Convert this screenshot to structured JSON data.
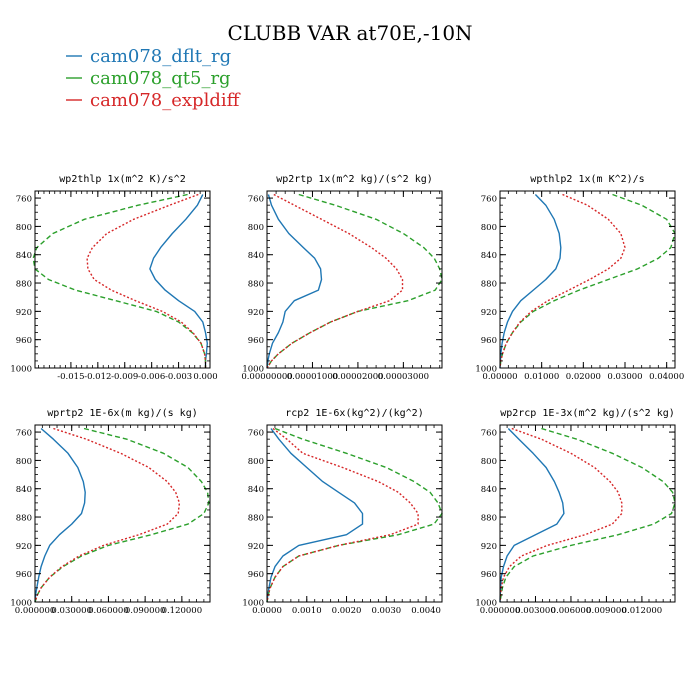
{
  "figure": {
    "title": "CLUBB VAR at70E,-10N",
    "legend": [
      {
        "label": "cam078_dflt_rg",
        "color": "#1f77b4"
      },
      {
        "label": "cam078_qt5_rg",
        "color": "#2ca02c"
      },
      {
        "label": "cam078_expldiff",
        "color": "#d62728"
      }
    ]
  },
  "chart_data": [
    {
      "type": "line",
      "title": "wp2thlp  1x(m^2 K)/s^2",
      "xlim": [
        -0.019,
        0.0005
      ],
      "ylim": [
        750,
        1000
      ],
      "y_inverted": true,
      "yticks": [
        760,
        800,
        840,
        880,
        920,
        960,
        1000
      ],
      "xticks": [
        -0.015,
        -0.012,
        -0.009,
        -0.006,
        -0.003,
        0.0
      ],
      "xtick_labels": [
        "-0.015",
        "-0.012",
        "-0.009",
        "-0.006",
        "-0.003",
        "0.000"
      ],
      "y": [
        755,
        770,
        790,
        810,
        830,
        845,
        860,
        875,
        890,
        905,
        920,
        935,
        950,
        965,
        980,
        990,
        1000
      ],
      "series": [
        {
          "name": "cam078_dflt_rg",
          "color": "#1f77b4",
          "dash": "",
          "x": [
            -0.0003,
            -0.0009,
            -0.0022,
            -0.0037,
            -0.005,
            -0.0058,
            -0.0062,
            -0.0056,
            -0.0045,
            -0.003,
            -0.0012,
            -0.0003,
            0.0,
            0.0002,
            0.0001,
            0.0,
            0.0
          ]
        },
        {
          "name": "cam078_qt5_rg",
          "color": "#2ca02c",
          "dash": "5,3",
          "x": [
            -0.002,
            -0.0075,
            -0.0135,
            -0.017,
            -0.0188,
            -0.0192,
            -0.019,
            -0.0175,
            -0.0145,
            -0.01,
            -0.0055,
            -0.003,
            -0.0015,
            -0.0005,
            -0.0001,
            0.0,
            0.0
          ]
        },
        {
          "name": "cam078_expldiff",
          "color": "#d62728",
          "dash": "2,2",
          "x": [
            -0.0008,
            -0.004,
            -0.008,
            -0.011,
            -0.0126,
            -0.0132,
            -0.0131,
            -0.0124,
            -0.0105,
            -0.0078,
            -0.0048,
            -0.0027,
            -0.0014,
            -0.0005,
            -0.0001,
            0.0,
            0.0
          ]
        }
      ]
    },
    {
      "type": "line",
      "title": "wp2rtp  1x(m^2 kg)/(s^2 kg)",
      "xlim": [
        0.0,
        3.85e-05
      ],
      "ylim": [
        750,
        1000
      ],
      "y_inverted": true,
      "yticks": [
        760,
        800,
        840,
        880,
        920,
        960,
        1000
      ],
      "xticks": [
        0.0,
        1e-05,
        2e-05,
        3e-05
      ],
      "xtick_labels": [
        "0.00000000",
        "0.00001000",
        "0.00002000",
        "0.00003000"
      ],
      "y": [
        755,
        770,
        790,
        810,
        830,
        845,
        860,
        875,
        890,
        905,
        920,
        935,
        950,
        965,
        980,
        990,
        1000
      ],
      "series": [
        {
          "name": "cam078_dflt_rg",
          "color": "#1f77b4",
          "dash": "",
          "x": [
            3e-07,
            1e-06,
            2.5e-06,
            4.8e-06,
            8e-06,
            1.05e-05,
            1.18e-05,
            1.2e-05,
            1.13e-05,
            6e-06,
            4e-06,
            3.5e-06,
            2.5e-06,
            1.2e-06,
            5e-07,
            2e-07,
            0.0
          ]
        },
        {
          "name": "cam078_qt5_rg",
          "color": "#2ca02c",
          "dash": "5,3",
          "x": [
            7e-06,
            1.5e-05,
            2.4e-05,
            3e-05,
            3.45e-05,
            3.68e-05,
            3.8e-05,
            3.85e-05,
            3.7e-05,
            3.1e-05,
            2e-05,
            1.4e-05,
            9.5e-06,
            5.5e-06,
            2.5e-06,
            1e-06,
            0.0
          ]
        },
        {
          "name": "cam078_expldiff",
          "color": "#d62728",
          "dash": "2,2",
          "x": [
            1.5e-06,
            6e-06,
            1.2e-05,
            1.8e-05,
            2.3e-05,
            2.62e-05,
            2.85e-05,
            2.98e-05,
            2.98e-05,
            2.7e-05,
            2e-05,
            1.4e-05,
            9.5e-06,
            5.5e-06,
            2.5e-06,
            1e-06,
            0.0
          ]
        }
      ]
    },
    {
      "type": "line",
      "title": "wpthlp2  1x(m K^2)/s",
      "xlim": [
        0.0,
        0.042
      ],
      "ylim": [
        750,
        1000
      ],
      "y_inverted": true,
      "yticks": [
        760,
        800,
        840,
        880,
        920,
        960,
        1000
      ],
      "xticks": [
        0.0,
        0.01,
        0.02,
        0.03,
        0.04
      ],
      "xtick_labels": [
        "0.00000",
        "0.01000",
        "0.02000",
        "0.03000",
        "0.04000"
      ],
      "y": [
        755,
        770,
        790,
        810,
        830,
        845,
        860,
        875,
        890,
        905,
        920,
        935,
        950,
        965,
        980,
        990,
        1000
      ],
      "series": [
        {
          "name": "cam078_dflt_rg",
          "color": "#1f77b4",
          "dash": "",
          "x": [
            0.0085,
            0.011,
            0.013,
            0.0142,
            0.0146,
            0.0144,
            0.0134,
            0.011,
            0.008,
            0.005,
            0.003,
            0.0018,
            0.001,
            0.0005,
            0.0002,
            0.0001,
            0.0
          ]
        },
        {
          "name": "cam078_qt5_rg",
          "color": "#2ca02c",
          "dash": "5,3",
          "x": [
            0.027,
            0.034,
            0.04,
            0.042,
            0.041,
            0.038,
            0.033,
            0.026,
            0.019,
            0.013,
            0.008,
            0.005,
            0.003,
            0.0015,
            0.0006,
            0.0002,
            0.0
          ]
        },
        {
          "name": "cam078_expldiff",
          "color": "#d62728",
          "dash": "2,2",
          "x": [
            0.015,
            0.021,
            0.026,
            0.029,
            0.03,
            0.029,
            0.026,
            0.0215,
            0.0165,
            0.0115,
            0.0075,
            0.0048,
            0.003,
            0.0015,
            0.0006,
            0.0002,
            0.0
          ]
        }
      ]
    },
    {
      "type": "line",
      "title": "wprtp2  1E-6x(m kg)/(s kg)",
      "xlim": [
        0.0,
        0.143
      ],
      "ylim": [
        750,
        1000
      ],
      "y_inverted": true,
      "yticks": [
        760,
        800,
        840,
        880,
        920,
        960,
        1000
      ],
      "xticks": [
        0.0,
        0.03,
        0.06,
        0.09,
        0.12
      ],
      "xtick_labels": [
        "0.000000",
        "0.030000",
        "0.060000",
        "0.090000",
        "0.120000"
      ],
      "y": [
        755,
        770,
        790,
        810,
        830,
        845,
        860,
        875,
        890,
        905,
        920,
        935,
        950,
        965,
        980,
        990,
        1000
      ],
      "series": [
        {
          "name": "cam078_dflt_rg",
          "color": "#1f77b4",
          "dash": "",
          "x": [
            0.005,
            0.015,
            0.027,
            0.035,
            0.0395,
            0.041,
            0.0405,
            0.038,
            0.03,
            0.02,
            0.012,
            0.008,
            0.005,
            0.003,
            0.0015,
            0.0005,
            0.0
          ]
        },
        {
          "name": "cam078_qt5_rg",
          "color": "#2ca02c",
          "dash": "5,3",
          "x": [
            0.04,
            0.075,
            0.105,
            0.125,
            0.136,
            0.141,
            0.142,
            0.138,
            0.125,
            0.095,
            0.06,
            0.038,
            0.023,
            0.012,
            0.005,
            0.002,
            0.0
          ]
        },
        {
          "name": "cam078_expldiff",
          "color": "#d62728",
          "dash": "2,2",
          "x": [
            0.015,
            0.042,
            0.07,
            0.093,
            0.108,
            0.115,
            0.118,
            0.117,
            0.108,
            0.085,
            0.056,
            0.036,
            0.022,
            0.012,
            0.005,
            0.002,
            0.0
          ]
        }
      ]
    },
    {
      "type": "line",
      "title": "rcp2  1E-6x(kg^2)/(kg^2)",
      "xlim": [
        0.0,
        0.0044
      ],
      "ylim": [
        750,
        1000
      ],
      "y_inverted": true,
      "yticks": [
        760,
        800,
        840,
        880,
        920,
        960,
        1000
      ],
      "xticks": [
        0.0,
        0.001,
        0.002,
        0.003,
        0.004
      ],
      "xtick_labels": [
        "0.0000",
        "0.0010",
        "0.0020",
        "0.0030",
        "0.0040"
      ],
      "y": [
        755,
        770,
        790,
        810,
        830,
        845,
        860,
        875,
        890,
        905,
        920,
        935,
        950,
        965,
        980,
        990,
        1000
      ],
      "series": [
        {
          "name": "cam078_dflt_rg",
          "color": "#1f77b4",
          "dash": "",
          "x": [
            0.0001,
            0.0003,
            0.0006,
            0.001,
            0.0014,
            0.0018,
            0.0022,
            0.0024,
            0.0024,
            0.002,
            0.0008,
            0.0004,
            0.0002,
            0.0001,
            5e-05,
            2e-05,
            0.0
          ]
        },
        {
          "name": "cam078_qt5_rg",
          "color": "#2ca02c",
          "dash": "5,3",
          "x": [
            0.0002,
            0.0009,
            0.002,
            0.003,
            0.0037,
            0.0041,
            0.0043,
            0.0044,
            0.0042,
            0.0033,
            0.0018,
            0.0008,
            0.0004,
            0.0002,
            8e-05,
            3e-05,
            0.0
          ]
        },
        {
          "name": "cam078_expldiff",
          "color": "#d62728",
          "dash": "2,2",
          "x": [
            0.00015,
            0.0005,
            0.0009,
            0.0019,
            0.0028,
            0.0033,
            0.0036,
            0.0038,
            0.0038,
            0.0031,
            0.0018,
            0.0008,
            0.0004,
            0.0002,
            8e-05,
            3e-05,
            0.0
          ]
        }
      ]
    },
    {
      "type": "line",
      "title": "wp2rcp  1E-3x(m^2 kg)/(s^2 kg)",
      "xlim": [
        0.0,
        0.0148
      ],
      "ylim": [
        750,
        1000
      ],
      "y_inverted": true,
      "yticks": [
        760,
        800,
        840,
        880,
        920,
        960,
        1000
      ],
      "xticks": [
        0.0,
        0.003,
        0.006,
        0.009,
        0.012
      ],
      "xtick_labels": [
        "0.000000",
        "0.003000",
        "0.006000",
        "0.009000",
        "0.012000"
      ],
      "y": [
        755,
        770,
        790,
        810,
        830,
        845,
        860,
        875,
        890,
        905,
        920,
        935,
        950,
        965,
        980,
        990,
        1000
      ],
      "series": [
        {
          "name": "cam078_dflt_rg",
          "color": "#1f77b4",
          "dash": "",
          "x": [
            0.0007,
            0.0016,
            0.0028,
            0.0039,
            0.0046,
            0.005,
            0.0053,
            0.0054,
            0.0048,
            0.003,
            0.0012,
            0.0006,
            0.0003,
            0.0001,
            5e-05,
            2e-05,
            0.0
          ]
        },
        {
          "name": "cam078_qt5_rg",
          "color": "#2ca02c",
          "dash": "5,3",
          "x": [
            0.0035,
            0.0065,
            0.0095,
            0.012,
            0.0138,
            0.0146,
            0.0148,
            0.0145,
            0.013,
            0.01,
            0.006,
            0.0028,
            0.0012,
            0.0005,
            0.0002,
            0.0001,
            0.0
          ]
        },
        {
          "name": "cam078_expldiff",
          "color": "#d62728",
          "dash": "2,2",
          "x": [
            0.001,
            0.0035,
            0.006,
            0.008,
            0.0093,
            0.01,
            0.0103,
            0.0103,
            0.0095,
            0.0072,
            0.004,
            0.0018,
            0.0008,
            0.0003,
            0.0001,
            5e-05,
            0.0
          ]
        }
      ]
    }
  ]
}
